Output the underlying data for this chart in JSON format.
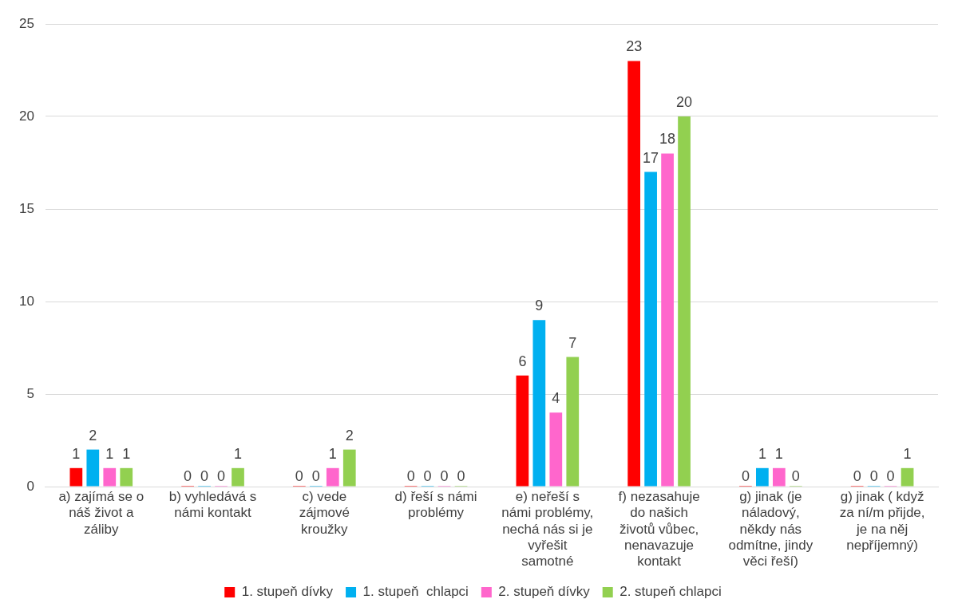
{
  "chart_data": {
    "type": "bar",
    "categories": [
      "a) zajímá se o náš život a záliby",
      "b) vyhledává s námi kontakt",
      "c) vede zájmové kroužky",
      "d) řeší s námi problémy",
      "e) neřeší s námi problémy, nechá nás si je vyřešit samotné",
      "f) nezasahuje do našich životů vůbec, nenavazuje kontakt",
      "g) jinak (je náladový, někdy nás odmítne, jindy věci řeší)",
      "g) jinak ( když za ní/m přijde, je na něj nepříjemný)"
    ],
    "series": [
      {
        "name": "1. stupeň dívky",
        "color": "#ff0000",
        "values": [
          1,
          0,
          0,
          0,
          6,
          23,
          0,
          0
        ]
      },
      {
        "name": "1. stupeň  chlapci",
        "color": "#00b0f0",
        "values": [
          2,
          0,
          0,
          0,
          9,
          17,
          1,
          0
        ]
      },
      {
        "name": "2. stupeň dívky",
        "color": "#ff66cc",
        "values": [
          1,
          0,
          1,
          0,
          4,
          18,
          1,
          0
        ]
      },
      {
        "name": "2. stupeň chlapci",
        "color": "#92d050",
        "values": [
          1,
          1,
          2,
          0,
          7,
          20,
          0,
          1
        ]
      }
    ],
    "ylim": [
      0,
      25
    ],
    "yticks": [
      0,
      5,
      10,
      15,
      20,
      25
    ],
    "grid": "y",
    "legend": "bottom",
    "data_labels": true
  }
}
